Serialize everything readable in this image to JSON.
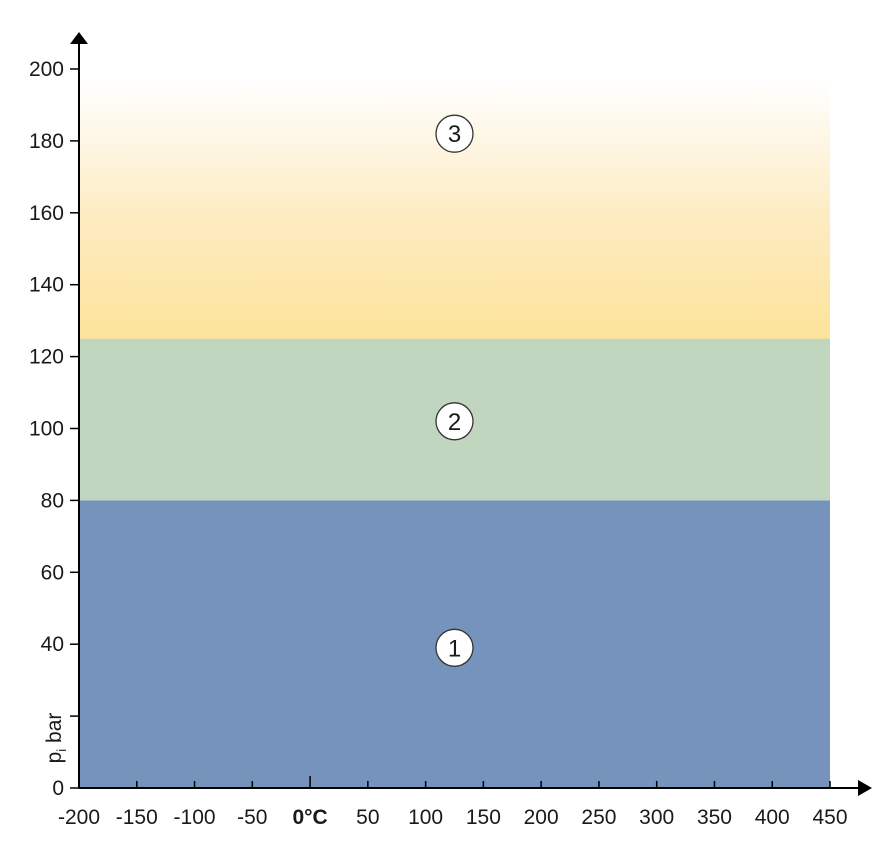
{
  "chart_data": {
    "type": "area",
    "title": "",
    "xlabel": "",
    "ylabel": "p",
    "ylabel_subscript": "i",
    "ylabel_unit": "bar",
    "xlim": [
      -200,
      450
    ],
    "ylim": [
      0,
      200
    ],
    "x_ticks": [
      -200,
      -150,
      -100,
      -50,
      0,
      50,
      100,
      150,
      200,
      250,
      300,
      350,
      400,
      450
    ],
    "x_tick_labels": [
      "-200",
      "-150",
      "-100",
      "-50",
      "0°C",
      "50",
      "100",
      "150",
      "200",
      "250",
      "300",
      "350",
      "400",
      "450"
    ],
    "x_bold_tick": "0°C",
    "y_ticks": [
      0,
      20,
      40,
      60,
      80,
      100,
      120,
      140,
      160,
      180,
      200
    ],
    "y_tick_labels": [
      "0",
      "",
      "40",
      "60",
      "80",
      "100",
      "120",
      "140",
      "160",
      "180",
      "200"
    ],
    "grid": false,
    "zones": [
      {
        "label": "1",
        "y_from": 0,
        "y_to": 80,
        "x_from": -200,
        "x_to": 450,
        "color": "#7694bb",
        "label_at": [
          125,
          39
        ]
      },
      {
        "label": "2",
        "y_from": 80,
        "y_to": 125,
        "x_from": -200,
        "x_to": 450,
        "color": "#c1d6bf",
        "label_at": [
          125,
          102
        ]
      },
      {
        "label": "3",
        "y_from": 125,
        "y_to": 197,
        "x_from": -200,
        "x_to": 450,
        "color_bottom": "#fde39a",
        "color_top": "#ffffff",
        "label_at": [
          125,
          182
        ]
      }
    ]
  }
}
